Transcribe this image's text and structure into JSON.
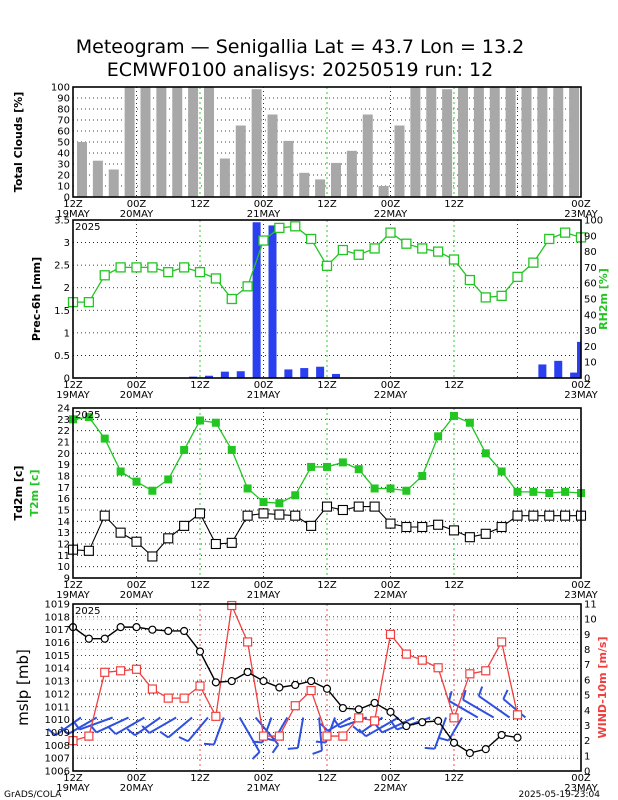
{
  "title": {
    "line1": "Meteogram — Senigallia Lat = 43.7 Lon = 13.2",
    "line2": "ECMWF0100 analisys: 20250519 run: 12"
  },
  "footer": {
    "left": "GrADS/COLA",
    "right": "2025-05-19-23:04"
  },
  "time_axis": {
    "hour_labels": [
      "12Z",
      "00Z",
      "12Z",
      "00Z",
      "12Z",
      "00Z",
      "12Z",
      "00Z"
    ],
    "date_labels": [
      "19MAY",
      "20MAY",
      "21MAY",
      "22MAY",
      "23MAY"
    ],
    "year_label": "2025"
  },
  "colors": {
    "clouds": "#a8a8a8",
    "precip": "#2a3ff0",
    "rh": "#22c522",
    "t2m": "#22c522",
    "td2m": "#000000",
    "mslp": "#000000",
    "wind_speed": "#f04040",
    "wind_barb": "#3050e0",
    "day_grid": "#22c522",
    "day_grid_bottom": "#f04040"
  },
  "chart_data": [
    {
      "type": "bar",
      "name": "clouds",
      "ylabel": "Total Clouds [%]",
      "ylim": [
        0,
        100
      ],
      "y_ticks": [
        "0",
        "10",
        "20",
        "30",
        "40",
        "50",
        "60",
        "70",
        "80",
        "90",
        "100"
      ],
      "x_hours": [
        0,
        6,
        12,
        18,
        24,
        30,
        36,
        42,
        48,
        54,
        60,
        66,
        72,
        78,
        84,
        90,
        96,
        102,
        108,
        114,
        120,
        126,
        132,
        138,
        144,
        150,
        156,
        162,
        168,
        174,
        180,
        186
      ],
      "values": [
        50,
        33,
        25,
        100,
        100,
        100,
        100,
        100,
        100,
        35,
        65,
        98,
        75,
        51,
        22,
        16,
        31,
        42,
        75,
        10,
        65,
        100,
        100,
        98,
        100,
        100,
        100,
        100,
        100,
        100,
        100,
        100
      ]
    },
    {
      "type": "bar+line",
      "name": "precip_rh",
      "ylabel": "Prec-6h [mm]",
      "ylabel_right": "RH2m [%]",
      "ylim": [
        0,
        3.5
      ],
      "ylim_right": [
        0,
        100
      ],
      "y_ticks": [
        "0",
        "0.5",
        "1",
        "1.5",
        "2",
        "2.5",
        "3",
        "3.5"
      ],
      "y_ticks_right": [
        "0",
        "10",
        "20",
        "30",
        "40",
        "50",
        "60",
        "70",
        "80",
        "90",
        "100"
      ],
      "year_label": "2025",
      "precip_hours": [
        36,
        42,
        48,
        54,
        60,
        66,
        72,
        78,
        84,
        90,
        96,
        102,
        168,
        174,
        180,
        186
      ],
      "precip_values": [
        0.01,
        0.03,
        0.05,
        0.14,
        0.15,
        3.45,
        3.38,
        0.19,
        0.22,
        0.25,
        0.09,
        0.01,
        0.01,
        0.3,
        0.38,
        0.12
      ],
      "precip_last": 0.8,
      "rh_hours": [
        0,
        6,
        12,
        18,
        24,
        30,
        36,
        42,
        48,
        54,
        60,
        66,
        72,
        78,
        84,
        90,
        96,
        102,
        108,
        114,
        120,
        126,
        132,
        138,
        144,
        150,
        156,
        162,
        168,
        174,
        180,
        186,
        192
      ],
      "rh_values": [
        48,
        48,
        65,
        70,
        70,
        70,
        67,
        70,
        67,
        63,
        50,
        58,
        87,
        95,
        96,
        88,
        71,
        81,
        78,
        82,
        92,
        85,
        82,
        80,
        75,
        62,
        51,
        52,
        64,
        73,
        88,
        92,
        89
      ]
    },
    {
      "type": "line",
      "name": "temperature",
      "ylabel": "Td2m [c]",
      "ylabel_2": "T2m [c]",
      "ylim": [
        9,
        24
      ],
      "y_ticks": [
        "9",
        "10",
        "11",
        "12",
        "13",
        "14",
        "15",
        "16",
        "17",
        "18",
        "19",
        "20",
        "21",
        "22",
        "23",
        "24"
      ],
      "year_label": "2025",
      "hours": [
        0,
        6,
        12,
        18,
        24,
        30,
        36,
        42,
        48,
        54,
        60,
        66,
        72,
        78,
        84,
        90,
        96,
        102,
        108,
        114,
        120,
        126,
        132,
        138,
        144,
        150,
        156,
        162,
        168,
        174,
        180,
        186,
        192
      ],
      "t2m": [
        23,
        23.2,
        21.3,
        18.4,
        17.5,
        16.7,
        17.7,
        20.3,
        22.9,
        22.7,
        20.3,
        16.9,
        15.7,
        15.6,
        16.3,
        18.8,
        18.8,
        19.2,
        18.6,
        16.9,
        16.9,
        16.7,
        18.0,
        21.5,
        23.3,
        22.7,
        20.0,
        18.4,
        16.6,
        16.6,
        16.5,
        16.6,
        16.5
      ],
      "td2m": [
        11.5,
        11.4,
        14.5,
        13.0,
        12.2,
        10.9,
        12.5,
        13.6,
        14.7,
        12.0,
        12.1,
        14.5,
        14.7,
        14.6,
        14.5,
        13.6,
        15.3,
        15.0,
        15.3,
        15.3,
        13.8,
        13.5,
        13.5,
        13.7,
        13.2,
        12.6,
        12.9,
        13.5,
        14.5,
        14.5,
        14.5,
        14.5,
        14.5
      ]
    },
    {
      "type": "line",
      "name": "mslp_wind",
      "ylabel": "mslp [mb]",
      "ylabel_right": "WIND-10m [m/s]",
      "ylim": [
        1006,
        1019
      ],
      "ylim_right": [
        0,
        11
      ],
      "y_ticks": [
        "1006",
        "1007",
        "1008",
        "1009",
        "1010",
        "1011",
        "1012",
        "1013",
        "1014",
        "1015",
        "1016",
        "1017",
        "1018",
        "1019"
      ],
      "y_ticks_right": [
        "0",
        "1",
        "2",
        "3",
        "4",
        "5",
        "6",
        "7",
        "8",
        "9",
        "10",
        "11"
      ],
      "year_label": "2025",
      "hours": [
        0,
        6,
        12,
        18,
        24,
        30,
        36,
        42,
        48,
        54,
        60,
        66,
        72,
        78,
        84,
        90,
        96,
        102,
        108,
        114,
        120,
        126,
        132,
        138,
        144,
        150,
        156,
        162,
        168
      ],
      "mslp": [
        1017.2,
        1016.3,
        1016.3,
        1017.2,
        1017.2,
        1017.0,
        1016.9,
        1016.9,
        1015.3,
        1012.9,
        1013.0,
        1013.7,
        1013.0,
        1012.5,
        1012.7,
        1013.0,
        1012.4,
        1010.9,
        1010.8,
        1011.3,
        1010.6,
        1009.5,
        1009.8,
        1009.9,
        1008.2,
        1007.4,
        1007.7,
        1008.8,
        1008.6
      ],
      "wind": [
        2.0,
        2.3,
        6.5,
        6.6,
        6.7,
        5.4,
        4.8,
        4.8,
        5.6,
        3.6,
        10.9,
        8.5,
        2.3,
        2.3,
        4.3,
        5.3,
        2.3,
        2.3,
        3.5,
        3.3,
        9.0,
        7.7,
        7.3,
        6.8,
        3.5,
        6.4,
        6.6,
        8.5,
        3.7
      ],
      "wind_barbs_note": "",
      "wind_barbs": [
        {
          "h": 3,
          "dir": 235,
          "spd": 5
        },
        {
          "h": 9,
          "dir": 240,
          "spd": 6
        },
        {
          "h": 15,
          "dir": 250,
          "spd": 7
        },
        {
          "h": 21,
          "dir": 245,
          "spd": 7
        },
        {
          "h": 27,
          "dir": 240,
          "spd": 6
        },
        {
          "h": 33,
          "dir": 235,
          "spd": 5
        },
        {
          "h": 39,
          "dir": 240,
          "spd": 5
        },
        {
          "h": 45,
          "dir": 230,
          "spd": 5
        },
        {
          "h": 51,
          "dir": 220,
          "spd": 5
        },
        {
          "h": 57,
          "dir": 200,
          "spd": 4
        },
        {
          "h": 63,
          "dir": 150,
          "spd": 9
        },
        {
          "h": 69,
          "dir": 140,
          "spd": 7
        },
        {
          "h": 75,
          "dir": 200,
          "spd": 3
        },
        {
          "h": 81,
          "dir": 210,
          "spd": 3
        },
        {
          "h": 87,
          "dir": 190,
          "spd": 5
        },
        {
          "h": 93,
          "dir": 175,
          "spd": 6
        },
        {
          "h": 99,
          "dir": 200,
          "spd": 3
        },
        {
          "h": 105,
          "dir": 240,
          "spd": 3
        },
        {
          "h": 111,
          "dir": 250,
          "spd": 4
        },
        {
          "h": 117,
          "dir": 235,
          "spd": 3
        },
        {
          "h": 123,
          "dir": 240,
          "spd": 8
        },
        {
          "h": 129,
          "dir": 245,
          "spd": 7
        },
        {
          "h": 135,
          "dir": 250,
          "spd": 7
        },
        {
          "h": 141,
          "dir": 200,
          "spd": 6
        },
        {
          "h": 147,
          "dir": 210,
          "spd": 3
        },
        {
          "h": 153,
          "dir": 300,
          "spd": 6
        },
        {
          "h": 159,
          "dir": 300,
          "spd": 7
        },
        {
          "h": 165,
          "dir": 305,
          "spd": 8
        },
        {
          "h": 171,
          "dir": 310,
          "spd": 4
        }
      ]
    }
  ]
}
